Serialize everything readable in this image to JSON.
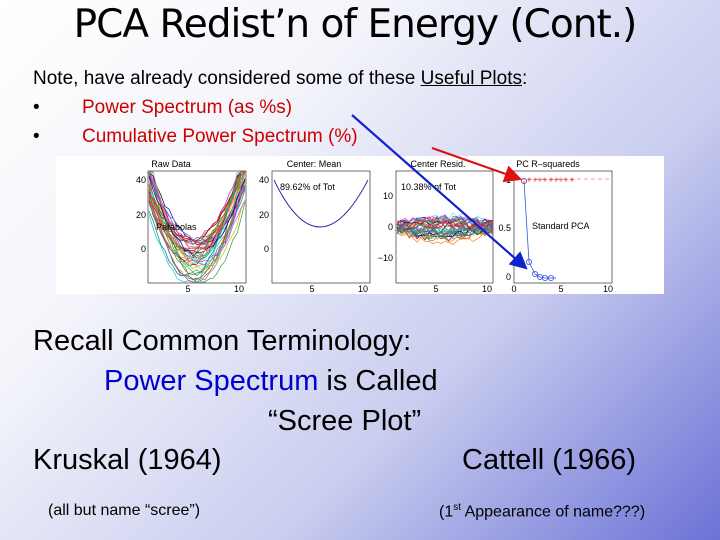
{
  "slide": {
    "title": "PCA Redist’n of Energy (Cont.)",
    "note": {
      "prefix": "Note, have already considered some of these ",
      "link": "Useful Plots",
      "suffix": ":"
    },
    "bullets": [
      {
        "bullet": "•",
        "text": "Power Spectrum (as %s)"
      },
      {
        "bullet": "•",
        "text": "Cumulative Power Spectrum (%)"
      }
    ],
    "recall": "Recall Common Terminology:",
    "power_spectrum": "Power Spectrum",
    "is_called": " is Called",
    "scree_plot": "“Scree Plot”",
    "kruskal": "Kruskal (1964)",
    "cattell": "Cattell (1966)",
    "kruskal_note": "(all but name “scree”)",
    "cattell_note_pre": "(1",
    "cattell_note_sup": "st",
    "cattell_note_post": " Appearance of name???)"
  },
  "figure": {
    "panels": [
      {
        "title": "Raw Data",
        "annotation": "Parabolas",
        "yticks": [
          "40",
          "20",
          "0"
        ],
        "xticks": [
          "5",
          "10"
        ]
      },
      {
        "title": "Center: Mean",
        "annotation": "89.62% of Tot",
        "yticks": [
          "40",
          "20",
          "0"
        ],
        "xticks": [
          "5",
          "10"
        ]
      },
      {
        "title": "Center Resid.",
        "annotation": "10.38% of Tot",
        "yticks": [
          "10",
          "0",
          "−10"
        ],
        "xticks": [
          "5",
          "10"
        ]
      },
      {
        "title": "PC R–squareds",
        "annotation": "Standard PCA",
        "yticks": [
          "1",
          "0.5",
          "0"
        ],
        "xticks": [
          "0",
          "5",
          "10"
        ]
      }
    ],
    "colors": {
      "arrow_red": "#dd1111",
      "arrow_blue": "#1122cc",
      "circles": "#3355dd",
      "plus": "#dd3333"
    }
  }
}
